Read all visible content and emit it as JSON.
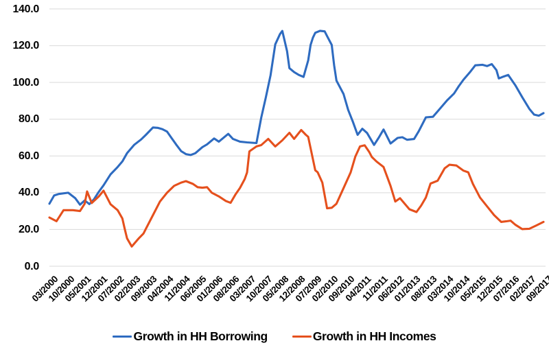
{
  "chart_data": {
    "type": "line",
    "title": "",
    "xlabel": "",
    "ylabel": "",
    "ylim": [
      0,
      140
    ],
    "y_tick_step": 20,
    "y_tick_labels": [
      "140.0",
      "120.0",
      "100.0",
      "80.0",
      "60.0",
      "40.0",
      "20.0",
      "0.0"
    ],
    "x_tick_labels": [
      "03/2000",
      "10/2000",
      "05/2001",
      "12/2001",
      "07/2002",
      "02/2003",
      "09/2003",
      "04/2004",
      "11/2004",
      "06/2005",
      "01/2006",
      "08/2006",
      "03/2007",
      "10/2007",
      "05/2008",
      "12/2008",
      "07/2009",
      "02/2010",
      "09/2010",
      "04/2011",
      "11/2011",
      "06/2012",
      "01/2013",
      "08/2013",
      "03/2014",
      "10/2014",
      "05/2015",
      "12/2015",
      "07/2016",
      "02/2017",
      "09/2017"
    ],
    "x_label_interval_months": 7,
    "x_total_months": 211,
    "grid": "horizontal-only",
    "grid_color": "#d9d9d9",
    "text_color": "#000000",
    "background": "#ffffff",
    "legend_position": "bottom-center",
    "series": [
      {
        "name": "Growth in HH Borrowing",
        "color": "#2e6bc0",
        "points": [
          [
            0,
            34
          ],
          [
            2,
            38.5
          ],
          [
            4,
            39.3
          ],
          [
            8,
            40
          ],
          [
            11,
            37
          ],
          [
            13,
            33.5
          ],
          [
            15,
            35.8
          ],
          [
            17,
            33.8
          ],
          [
            19,
            36.5
          ],
          [
            21,
            40.5
          ],
          [
            23,
            44
          ],
          [
            26,
            50
          ],
          [
            29,
            54
          ],
          [
            31,
            57
          ],
          [
            33,
            61.5
          ],
          [
            36,
            66
          ],
          [
            39,
            69
          ],
          [
            41,
            71.5
          ],
          [
            44,
            75.5
          ],
          [
            46,
            75.3
          ],
          [
            48,
            74.6
          ],
          [
            50,
            73.3
          ],
          [
            52,
            69.6
          ],
          [
            54,
            66
          ],
          [
            56,
            62.6
          ],
          [
            58,
            61
          ],
          [
            60,
            60.5
          ],
          [
            62,
            61.5
          ],
          [
            65,
            64.8
          ],
          [
            67,
            66.3
          ],
          [
            70,
            69.5
          ],
          [
            72,
            67.8
          ],
          [
            76,
            72
          ],
          [
            78,
            69.3
          ],
          [
            81,
            67.8
          ],
          [
            84,
            67.4
          ],
          [
            86,
            67.2
          ],
          [
            88,
            67
          ],
          [
            90,
            80.7
          ],
          [
            92,
            91.9
          ],
          [
            94,
            104
          ],
          [
            96,
            120.7
          ],
          [
            98,
            126.3
          ],
          [
            99,
            128
          ],
          [
            101,
            117
          ],
          [
            102,
            107.8
          ],
          [
            104,
            105.6
          ],
          [
            106,
            104.1
          ],
          [
            108,
            103
          ],
          [
            110,
            112
          ],
          [
            111,
            120.4
          ],
          [
            112,
            124.4
          ],
          [
            113,
            127
          ],
          [
            115,
            128.1
          ],
          [
            117,
            127.8
          ],
          [
            118,
            125.2
          ],
          [
            120,
            120.4
          ],
          [
            121,
            109.3
          ],
          [
            122,
            101
          ],
          [
            125,
            93.7
          ],
          [
            127,
            85
          ],
          [
            129,
            78.5
          ],
          [
            131,
            71.5
          ],
          [
            133,
            74.8
          ],
          [
            135,
            72.5
          ],
          [
            138,
            66
          ],
          [
            140,
            70
          ],
          [
            142,
            74.4
          ],
          [
            145,
            66.8
          ],
          [
            148,
            69.8
          ],
          [
            150,
            70.2
          ],
          [
            152,
            68.8
          ],
          [
            155,
            69.2
          ],
          [
            157,
            73.5
          ],
          [
            160,
            81
          ],
          [
            163,
            81.3
          ],
          [
            166,
            85.7
          ],
          [
            169,
            90.2
          ],
          [
            172,
            94
          ],
          [
            174,
            98
          ],
          [
            176,
            101.5
          ],
          [
            179,
            106
          ],
          [
            181,
            109.3
          ],
          [
            184,
            109.6
          ],
          [
            186,
            108.9
          ],
          [
            188,
            110
          ],
          [
            190,
            106.7
          ],
          [
            191,
            102.2
          ],
          [
            193,
            103.2
          ],
          [
            195,
            104.1
          ],
          [
            198,
            98.5
          ],
          [
            201,
            91.9
          ],
          [
            204,
            85.6
          ],
          [
            206,
            82.5
          ],
          [
            208,
            81.9
          ],
          [
            210,
            83.3
          ]
        ]
      },
      {
        "name": "Growth in HH Incomes",
        "color": "#e5501d",
        "points": [
          [
            0,
            26.5
          ],
          [
            3,
            24.5
          ],
          [
            6,
            30.5
          ],
          [
            10,
            30.5
          ],
          [
            13,
            30
          ],
          [
            15,
            34
          ],
          [
            16,
            40.7
          ],
          [
            18,
            34.4
          ],
          [
            21,
            38
          ],
          [
            23,
            41.1
          ],
          [
            26,
            33.7
          ],
          [
            29,
            30.5
          ],
          [
            31,
            26
          ],
          [
            32,
            20.4
          ],
          [
            33,
            15.2
          ],
          [
            35,
            10.7
          ],
          [
            38,
            15.2
          ],
          [
            40,
            17.8
          ],
          [
            41,
            20.4
          ],
          [
            44,
            27.8
          ],
          [
            47,
            35.2
          ],
          [
            50,
            40
          ],
          [
            53,
            43.7
          ],
          [
            56,
            45.5
          ],
          [
            58,
            46.3
          ],
          [
            61,
            44.8
          ],
          [
            63,
            43
          ],
          [
            65,
            42.7
          ],
          [
            67,
            43
          ],
          [
            69,
            40
          ],
          [
            72,
            38
          ],
          [
            75,
            35.5
          ],
          [
            77,
            34.5
          ],
          [
            79,
            38.9
          ],
          [
            81,
            42.6
          ],
          [
            83,
            47.4
          ],
          [
            84,
            51
          ],
          [
            85,
            62.5
          ],
          [
            88,
            65.2
          ],
          [
            90,
            65.9
          ],
          [
            93,
            69.3
          ],
          [
            96,
            65.2
          ],
          [
            99,
            68.5
          ],
          [
            102,
            72.6
          ],
          [
            104,
            69.3
          ],
          [
            107,
            74.1
          ],
          [
            109,
            71.5
          ],
          [
            110,
            70.4
          ],
          [
            113,
            52.2
          ],
          [
            114,
            51.1
          ],
          [
            116,
            45.5
          ],
          [
            118,
            31.5
          ],
          [
            120,
            31.8
          ],
          [
            122,
            34
          ],
          [
            125,
            42.5
          ],
          [
            128,
            51
          ],
          [
            130,
            59.6
          ],
          [
            132,
            65.2
          ],
          [
            134,
            65.8
          ],
          [
            136,
            62
          ],
          [
            137,
            59.5
          ],
          [
            139,
            57
          ],
          [
            142,
            54
          ],
          [
            145,
            43.7
          ],
          [
            147,
            35.2
          ],
          [
            149,
            37
          ],
          [
            151,
            34
          ],
          [
            153,
            31
          ],
          [
            156,
            29.5
          ],
          [
            158,
            33
          ],
          [
            160,
            37.4
          ],
          [
            162,
            45
          ],
          [
            165,
            46.5
          ],
          [
            168,
            53.3
          ],
          [
            170,
            55.2
          ],
          [
            173,
            54.8
          ],
          [
            176,
            52
          ],
          [
            178,
            51.1
          ],
          [
            180,
            44.8
          ],
          [
            183,
            37.4
          ],
          [
            186,
            32.6
          ],
          [
            189,
            27.8
          ],
          [
            192,
            24.1
          ],
          [
            194,
            24.4
          ],
          [
            196,
            24.8
          ],
          [
            198,
            22.6
          ],
          [
            201,
            20.2
          ],
          [
            204,
            20.4
          ],
          [
            207,
            22.2
          ],
          [
            210,
            24.1
          ]
        ]
      }
    ]
  }
}
